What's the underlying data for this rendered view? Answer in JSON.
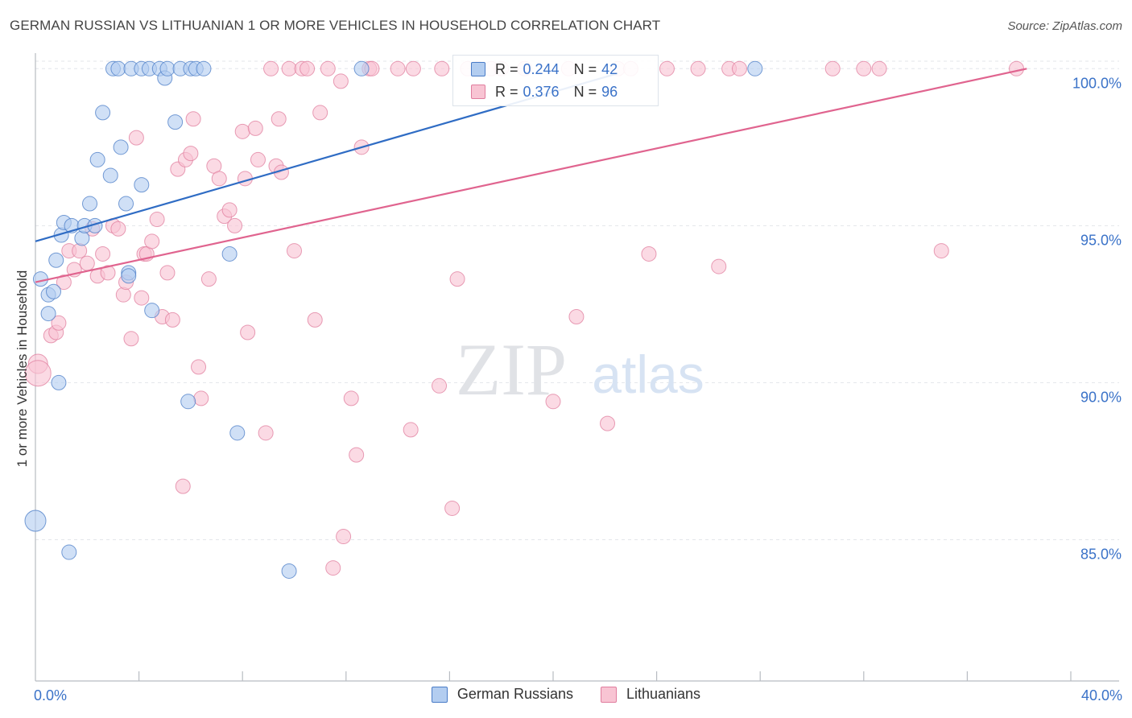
{
  "header": {
    "title": "GERMAN RUSSIAN VS LITHUANIAN 1 OR MORE VEHICLES IN HOUSEHOLD CORRELATION CHART",
    "source": "Source: ZipAtlas.com"
  },
  "watermark": {
    "zip": "ZIP",
    "atlas": "atlas"
  },
  "legend": {
    "series": [
      {
        "r_label": "R =",
        "r_value": "0.244",
        "n_label": "N =",
        "n_value": "42"
      },
      {
        "r_label": "R =",
        "r_value": "0.376",
        "n_label": "N =",
        "n_value": "96"
      }
    ]
  },
  "chart_data": {
    "type": "scatter",
    "title": "GERMAN RUSSIAN VS LITHUANIAN 1 OR MORE VEHICLES IN HOUSEHOLD CORRELATION CHART",
    "xlabel": "",
    "ylabel": "1 or more Vehicles in Household",
    "xlim": [
      0,
      40
    ],
    "ylim": [
      80.5,
      100.7
    ],
    "x_tick_labels": [
      {
        "value": 0,
        "label": "0.0%"
      },
      {
        "value": 40,
        "label": "40.0%"
      }
    ],
    "x_minor_ticks": [
      4,
      8,
      12,
      16,
      20,
      24,
      28,
      32,
      36,
      40
    ],
    "y_ticks": [
      {
        "value": 100,
        "label": "100.0%"
      },
      {
        "value": 95,
        "label": "95.0%"
      },
      {
        "value": 90,
        "label": "90.0%"
      },
      {
        "value": 85,
        "label": "85.0%"
      }
    ],
    "grid": true,
    "colors": {
      "german_fill": "#b3cdf0",
      "german_stroke": "#4a7cc7",
      "german_line": "#2f6cc4",
      "lith_fill": "#f8c4d3",
      "lith_stroke": "#e07d9e",
      "lith_line": "#e0648f",
      "tick_label": "#3a72c8",
      "grid": "#e3e6ea",
      "axis": "#b8bcc2"
    },
    "series": [
      {
        "name": "German Russians",
        "r": 0.244,
        "n": 42,
        "trend": {
          "x": [
            0,
            22.5
          ],
          "y": [
            94.5,
            99.85
          ]
        },
        "points": [
          {
            "x": 0.0,
            "y": 85.6,
            "s": 13
          },
          {
            "x": 0.2,
            "y": 93.3,
            "s": 9
          },
          {
            "x": 0.5,
            "y": 92.2,
            "s": 9
          },
          {
            "x": 0.5,
            "y": 92.8,
            "s": 9
          },
          {
            "x": 0.7,
            "y": 92.9,
            "s": 9
          },
          {
            "x": 0.8,
            "y": 93.9,
            "s": 9
          },
          {
            "x": 0.9,
            "y": 90.0,
            "s": 9
          },
          {
            "x": 1.0,
            "y": 94.7,
            "s": 9
          },
          {
            "x": 1.1,
            "y": 95.1,
            "s": 9
          },
          {
            "x": 1.3,
            "y": 84.6,
            "s": 9
          },
          {
            "x": 1.4,
            "y": 95.0,
            "s": 9
          },
          {
            "x": 1.8,
            "y": 94.6,
            "s": 9
          },
          {
            "x": 1.9,
            "y": 95.0,
            "s": 9
          },
          {
            "x": 2.1,
            "y": 95.7,
            "s": 9
          },
          {
            "x": 2.3,
            "y": 95.0,
            "s": 9
          },
          {
            "x": 2.4,
            "y": 97.1,
            "s": 9
          },
          {
            "x": 2.6,
            "y": 98.6,
            "s": 9
          },
          {
            "x": 2.9,
            "y": 96.6,
            "s": 9
          },
          {
            "x": 3.0,
            "y": 100.0,
            "s": 9
          },
          {
            "x": 3.2,
            "y": 100.0,
            "s": 9
          },
          {
            "x": 3.3,
            "y": 97.5,
            "s": 9
          },
          {
            "x": 3.5,
            "y": 95.7,
            "s": 9
          },
          {
            "x": 3.6,
            "y": 93.5,
            "s": 9
          },
          {
            "x": 3.6,
            "y": 93.4,
            "s": 9
          },
          {
            "x": 3.7,
            "y": 100.0,
            "s": 9
          },
          {
            "x": 4.1,
            "y": 100.0,
            "s": 9
          },
          {
            "x": 4.1,
            "y": 96.3,
            "s": 9
          },
          {
            "x": 4.4,
            "y": 100.0,
            "s": 9
          },
          {
            "x": 4.5,
            "y": 92.3,
            "s": 9
          },
          {
            "x": 4.8,
            "y": 100.0,
            "s": 9
          },
          {
            "x": 5.0,
            "y": 99.7,
            "s": 9
          },
          {
            "x": 5.1,
            "y": 100.0,
            "s": 9
          },
          {
            "x": 5.4,
            "y": 98.3,
            "s": 9
          },
          {
            "x": 5.6,
            "y": 100.0,
            "s": 9
          },
          {
            "x": 5.9,
            "y": 89.4,
            "s": 9
          },
          {
            "x": 6.0,
            "y": 100.0,
            "s": 9
          },
          {
            "x": 6.2,
            "y": 100.0,
            "s": 9
          },
          {
            "x": 6.5,
            "y": 100.0,
            "s": 9
          },
          {
            "x": 7.5,
            "y": 94.1,
            "s": 9
          },
          {
            "x": 7.8,
            "y": 88.4,
            "s": 9
          },
          {
            "x": 9.8,
            "y": 84.0,
            "s": 9
          },
          {
            "x": 12.6,
            "y": 100.0,
            "s": 9
          },
          {
            "x": 27.8,
            "y": 100.0,
            "s": 9
          }
        ]
      },
      {
        "name": "Lithuanians",
        "r": 0.376,
        "n": 96,
        "trend": {
          "x": [
            0,
            38.3
          ],
          "y": [
            93.2,
            100.0
          ]
        },
        "points": [
          {
            "x": 0.1,
            "y": 90.6,
            "s": 12
          },
          {
            "x": 0.1,
            "y": 90.3,
            "s": 16
          },
          {
            "x": 0.6,
            "y": 91.5,
            "s": 9
          },
          {
            "x": 0.8,
            "y": 91.6,
            "s": 9
          },
          {
            "x": 0.9,
            "y": 91.9,
            "s": 9
          },
          {
            "x": 1.1,
            "y": 93.2,
            "s": 9
          },
          {
            "x": 1.3,
            "y": 94.2,
            "s": 9
          },
          {
            "x": 1.5,
            "y": 93.6,
            "s": 9
          },
          {
            "x": 1.7,
            "y": 94.2,
            "s": 9
          },
          {
            "x": 2.0,
            "y": 93.8,
            "s": 9
          },
          {
            "x": 2.2,
            "y": 94.9,
            "s": 9
          },
          {
            "x": 2.4,
            "y": 93.4,
            "s": 9
          },
          {
            "x": 2.6,
            "y": 94.1,
            "s": 9
          },
          {
            "x": 2.8,
            "y": 93.5,
            "s": 9
          },
          {
            "x": 3.0,
            "y": 95.0,
            "s": 9
          },
          {
            "x": 3.2,
            "y": 94.9,
            "s": 9
          },
          {
            "x": 3.4,
            "y": 92.8,
            "s": 9
          },
          {
            "x": 3.5,
            "y": 93.2,
            "s": 9
          },
          {
            "x": 3.7,
            "y": 91.4,
            "s": 9
          },
          {
            "x": 3.9,
            "y": 97.8,
            "s": 9
          },
          {
            "x": 4.1,
            "y": 92.7,
            "s": 9
          },
          {
            "x": 4.2,
            "y": 94.1,
            "s": 9
          },
          {
            "x": 4.3,
            "y": 94.1,
            "s": 9
          },
          {
            "x": 4.5,
            "y": 94.5,
            "s": 9
          },
          {
            "x": 4.7,
            "y": 95.2,
            "s": 9
          },
          {
            "x": 4.9,
            "y": 92.1,
            "s": 9
          },
          {
            "x": 5.1,
            "y": 93.5,
            "s": 9
          },
          {
            "x": 5.3,
            "y": 92.0,
            "s": 9
          },
          {
            "x": 5.5,
            "y": 96.8,
            "s": 9
          },
          {
            "x": 5.7,
            "y": 86.7,
            "s": 9
          },
          {
            "x": 5.8,
            "y": 97.1,
            "s": 9
          },
          {
            "x": 6.0,
            "y": 97.3,
            "s": 9
          },
          {
            "x": 6.1,
            "y": 98.4,
            "s": 9
          },
          {
            "x": 6.3,
            "y": 90.5,
            "s": 9
          },
          {
            "x": 6.4,
            "y": 89.5,
            "s": 9
          },
          {
            "x": 6.7,
            "y": 93.3,
            "s": 9
          },
          {
            "x": 6.9,
            "y": 96.9,
            "s": 9
          },
          {
            "x": 7.1,
            "y": 96.5,
            "s": 9
          },
          {
            "x": 7.3,
            "y": 95.3,
            "s": 9
          },
          {
            "x": 7.5,
            "y": 95.5,
            "s": 9
          },
          {
            "x": 7.7,
            "y": 95.0,
            "s": 9
          },
          {
            "x": 8.0,
            "y": 98.0,
            "s": 9
          },
          {
            "x": 8.1,
            "y": 96.5,
            "s": 9
          },
          {
            "x": 8.2,
            "y": 91.6,
            "s": 9
          },
          {
            "x": 8.5,
            "y": 98.1,
            "s": 9
          },
          {
            "x": 8.6,
            "y": 97.1,
            "s": 9
          },
          {
            "x": 8.9,
            "y": 88.4,
            "s": 9
          },
          {
            "x": 9.1,
            "y": 100.0,
            "s": 9
          },
          {
            "x": 9.3,
            "y": 96.9,
            "s": 9
          },
          {
            "x": 9.4,
            "y": 98.4,
            "s": 9
          },
          {
            "x": 9.5,
            "y": 96.7,
            "s": 9
          },
          {
            "x": 9.8,
            "y": 100.0,
            "s": 9
          },
          {
            "x": 10.0,
            "y": 94.2,
            "s": 9
          },
          {
            "x": 10.3,
            "y": 100.0,
            "s": 9
          },
          {
            "x": 10.5,
            "y": 100.0,
            "s": 9
          },
          {
            "x": 10.8,
            "y": 92.0,
            "s": 9
          },
          {
            "x": 11.0,
            "y": 98.6,
            "s": 9
          },
          {
            "x": 11.3,
            "y": 100.0,
            "s": 9
          },
          {
            "x": 11.5,
            "y": 84.1,
            "s": 9
          },
          {
            "x": 11.8,
            "y": 99.6,
            "s": 9
          },
          {
            "x": 11.9,
            "y": 85.1,
            "s": 9
          },
          {
            "x": 12.2,
            "y": 89.5,
            "s": 9
          },
          {
            "x": 12.4,
            "y": 87.7,
            "s": 9
          },
          {
            "x": 12.6,
            "y": 97.5,
            "s": 9
          },
          {
            "x": 12.9,
            "y": 100.0,
            "s": 9
          },
          {
            "x": 13.0,
            "y": 100.0,
            "s": 9
          },
          {
            "x": 14.0,
            "y": 100.0,
            "s": 9
          },
          {
            "x": 14.5,
            "y": 88.5,
            "s": 9
          },
          {
            "x": 14.6,
            "y": 100.0,
            "s": 9
          },
          {
            "x": 15.6,
            "y": 89.9,
            "s": 9
          },
          {
            "x": 15.7,
            "y": 100.0,
            "s": 9
          },
          {
            "x": 16.1,
            "y": 86.0,
            "s": 9
          },
          {
            "x": 16.3,
            "y": 93.3,
            "s": 9
          },
          {
            "x": 16.7,
            "y": 100.0,
            "s": 9
          },
          {
            "x": 17.1,
            "y": 100.0,
            "s": 9
          },
          {
            "x": 17.6,
            "y": 100.0,
            "s": 9
          },
          {
            "x": 18.0,
            "y": 100.0,
            "s": 9
          },
          {
            "x": 18.9,
            "y": 100.0,
            "s": 9
          },
          {
            "x": 20.0,
            "y": 89.4,
            "s": 9
          },
          {
            "x": 20.6,
            "y": 100.0,
            "s": 9
          },
          {
            "x": 20.9,
            "y": 92.1,
            "s": 9
          },
          {
            "x": 22.1,
            "y": 88.7,
            "s": 9
          },
          {
            "x": 22.5,
            "y": 100.0,
            "s": 9
          },
          {
            "x": 23.0,
            "y": 100.0,
            "s": 9
          },
          {
            "x": 23.7,
            "y": 94.1,
            "s": 9
          },
          {
            "x": 24.4,
            "y": 100.0,
            "s": 9
          },
          {
            "x": 25.6,
            "y": 100.0,
            "s": 9
          },
          {
            "x": 26.4,
            "y": 93.7,
            "s": 9
          },
          {
            "x": 26.8,
            "y": 100.0,
            "s": 9
          },
          {
            "x": 27.2,
            "y": 100.0,
            "s": 9
          },
          {
            "x": 30.8,
            "y": 100.0,
            "s": 9
          },
          {
            "x": 32.0,
            "y": 100.0,
            "s": 9
          },
          {
            "x": 32.6,
            "y": 100.0,
            "s": 9
          },
          {
            "x": 35.0,
            "y": 94.2,
            "s": 9
          },
          {
            "x": 37.9,
            "y": 100.0,
            "s": 9
          }
        ]
      }
    ]
  }
}
